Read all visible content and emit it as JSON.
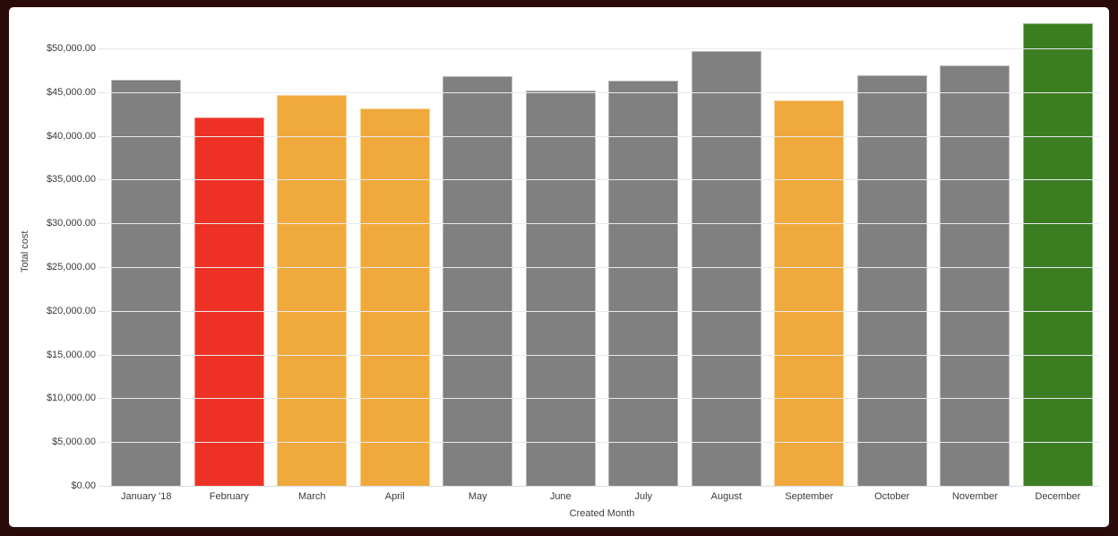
{
  "frame": {
    "border_color": "#2b0b09",
    "card_background": "#ffffff"
  },
  "chart_data": {
    "type": "bar",
    "title": "",
    "xlabel": "Created Month",
    "ylabel": "Total cost",
    "categories": [
      "January '18",
      "February",
      "March",
      "April",
      "May",
      "June",
      "July",
      "August",
      "September",
      "October",
      "November",
      "December"
    ],
    "values": [
      46400,
      42100,
      44650,
      43100,
      46800,
      45200,
      46300,
      49700,
      44050,
      46950,
      48050,
      52900
    ],
    "bar_colors": [
      "#808080",
      "#ed3124",
      "#f0a93c",
      "#f0a93c",
      "#808080",
      "#808080",
      "#808080",
      "#808080",
      "#f0a93c",
      "#808080",
      "#808080",
      "#3b7e22"
    ],
    "default_bar_color": "#808080",
    "highlight_colors": {
      "red": "#ed3124",
      "orange": "#f0a93c",
      "green": "#3b7e22",
      "gray": "#808080"
    },
    "y_ticks": [
      {
        "label": "$0.00",
        "value": 0
      },
      {
        "label": "$5,000.00",
        "value": 5000
      },
      {
        "label": "$10,000.00",
        "value": 10000
      },
      {
        "label": "$15,000.00",
        "value": 15000
      },
      {
        "label": "$20,000.00",
        "value": 20000
      },
      {
        "label": "$25,000.00",
        "value": 25000
      },
      {
        "label": "$30,000.00",
        "value": 30000
      },
      {
        "label": "$35,000.00",
        "value": 35000
      },
      {
        "label": "$40,000.00",
        "value": 40000
      },
      {
        "label": "$45,000.00",
        "value": 45000
      },
      {
        "label": "$50,000.00",
        "value": 50000
      }
    ],
    "ylim": [
      0,
      53470
    ],
    "grid": true,
    "legend_position": "none"
  }
}
